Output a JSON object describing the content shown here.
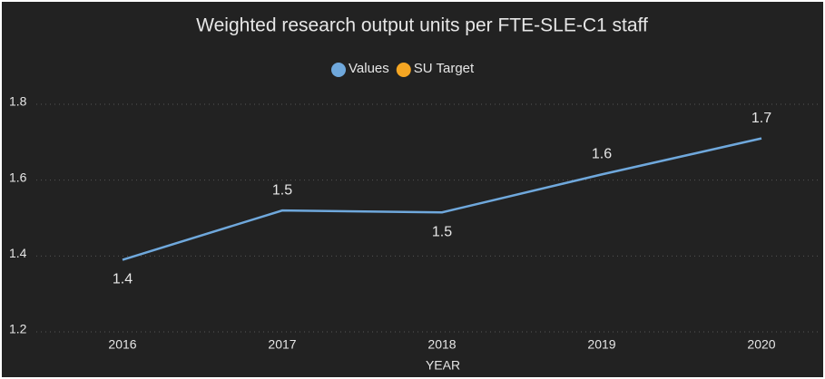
{
  "chart_data": {
    "type": "line",
    "title": "Weighted research output units per FTE-SLE-C1 staff",
    "x_label": "YEAR",
    "categories": [
      "2016",
      "2017",
      "2018",
      "2019",
      "2020"
    ],
    "series": [
      {
        "name": "Values",
        "color": "#6fa8dc",
        "values": [
          1.39,
          1.52,
          1.515,
          1.615,
          1.71
        ],
        "value_labels": [
          "1.4",
          "1.5",
          "1.5",
          "1.6",
          "1.7"
        ]
      },
      {
        "name": "SU Target",
        "color": "#f5a623",
        "values": [
          null,
          null,
          null,
          null,
          null
        ]
      }
    ],
    "ylim": [
      1.2,
      1.8
    ],
    "yticks": [
      1.2,
      1.4,
      1.6,
      1.8
    ],
    "grid": true,
    "legend": "top"
  }
}
